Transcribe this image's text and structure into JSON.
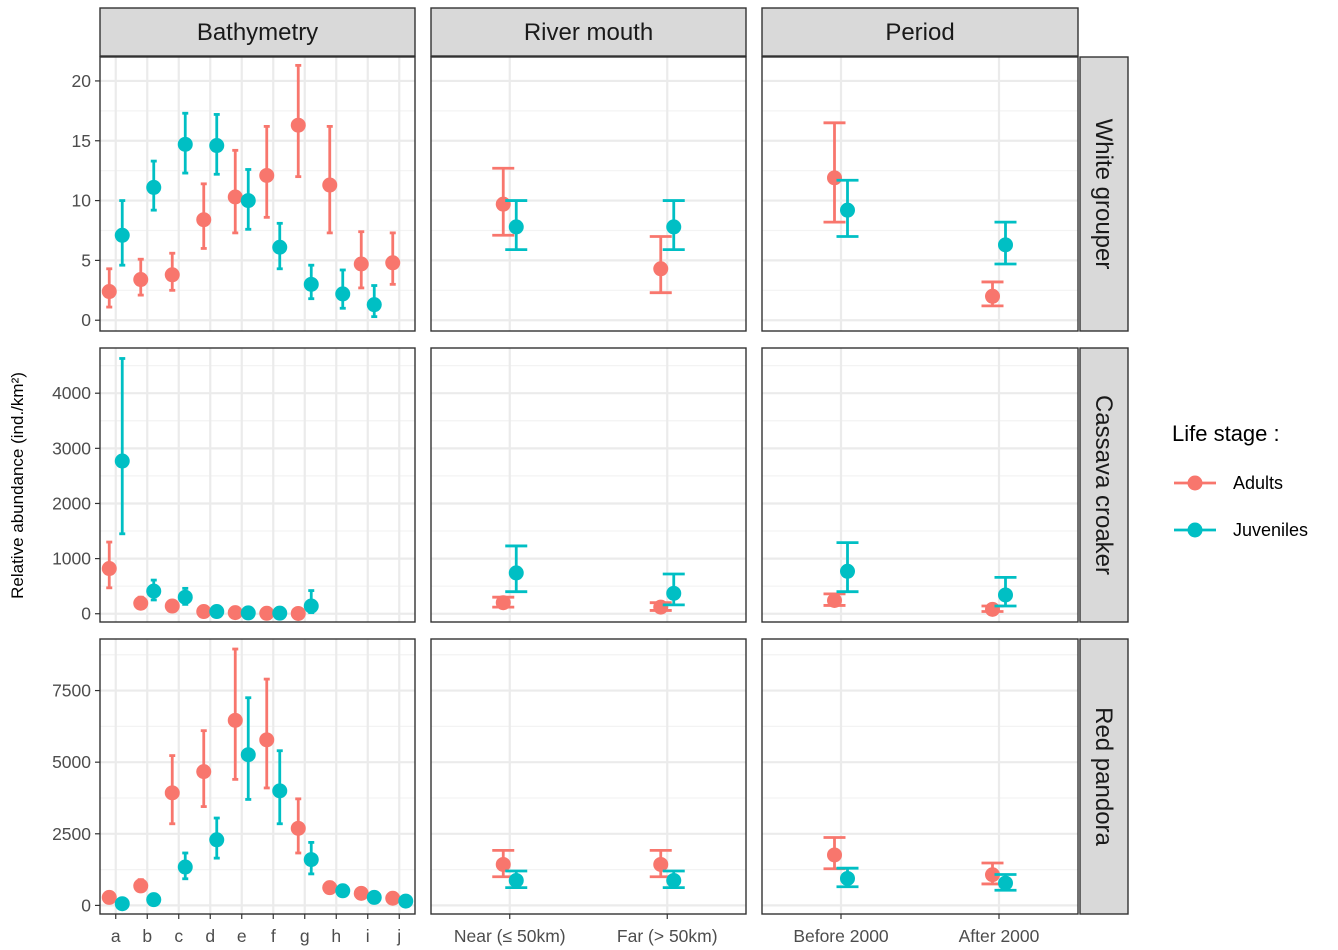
{
  "chart_data": {
    "type": "scatter",
    "subtype": "point-with-errorbars",
    "ylabel": "Relative abundance (ind./km²)",
    "xlabel": "",
    "legend": {
      "title": "Life stage :",
      "placement": "right",
      "entries": [
        {
          "name": "Adults",
          "color": "#F8766D"
        },
        {
          "name": "Juveniles",
          "color": "#00BFC4"
        }
      ]
    },
    "columns": [
      {
        "key": "bath",
        "label": "Bathymetry",
        "categories": [
          "a",
          "b",
          "c",
          "d",
          "e",
          "f",
          "g",
          "h",
          "i",
          "j"
        ]
      },
      {
        "key": "river",
        "label": "River mouth",
        "categories": [
          "Near (≤ 50km)",
          "Far (> 50km)"
        ]
      },
      {
        "key": "period",
        "label": "Period",
        "categories": [
          "Before 2000",
          "After 2000"
        ]
      }
    ],
    "rows": [
      {
        "label": "White grouper",
        "ylim": [
          -0.9,
          22
        ],
        "yticks": [
          0,
          5,
          10,
          15,
          20
        ],
        "panels": {
          "bath": {
            "Adults": [
              [
                2.4,
                1.1,
                4.3
              ],
              [
                3.4,
                2.1,
                5.1
              ],
              [
                3.8,
                2.5,
                5.6
              ],
              [
                8.4,
                6.0,
                11.4
              ],
              [
                10.3,
                7.3,
                14.2
              ],
              [
                12.1,
                8.6,
                16.2
              ],
              [
                16.3,
                12.0,
                21.3
              ],
              [
                11.3,
                7.3,
                16.2
              ],
              [
                4.7,
                2.7,
                7.4
              ],
              [
                4.8,
                3.0,
                7.3
              ]
            ],
            "Juveniles": [
              [
                7.1,
                4.6,
                10.0
              ],
              [
                11.1,
                9.2,
                13.3
              ],
              [
                14.7,
                12.3,
                17.3
              ],
              [
                14.6,
                12.2,
                17.2
              ],
              [
                10.0,
                7.6,
                12.6
              ],
              [
                6.1,
                4.3,
                8.1
              ],
              [
                3.0,
                1.8,
                4.6
              ],
              [
                2.2,
                1.0,
                4.2
              ],
              [
                1.3,
                0.3,
                2.9
              ],
              null
            ]
          },
          "river": {
            "Adults": [
              [
                9.7,
                7.1,
                12.7
              ],
              [
                4.3,
                2.3,
                7.0
              ]
            ],
            "Juveniles": [
              [
                7.8,
                5.9,
                10.0
              ],
              [
                7.8,
                5.9,
                10.0
              ]
            ]
          },
          "period": {
            "Adults": [
              [
                11.9,
                8.2,
                16.5
              ],
              [
                2.0,
                1.2,
                3.2
              ]
            ],
            "Juveniles": [
              [
                9.2,
                7.0,
                11.7
              ],
              [
                6.3,
                4.7,
                8.2
              ]
            ]
          }
        }
      },
      {
        "label": "Cassava croaker",
        "ylim": [
          -150,
          4820
        ],
        "yticks": [
          0,
          1000,
          2000,
          3000,
          4000
        ],
        "panels": {
          "bath": {
            "Adults": [
              [
                820,
                470,
                1300
              ],
              [
                190,
                110,
                300
              ],
              [
                140,
                80,
                240
              ],
              [
                40,
                10,
                80
              ],
              [
                20,
                5,
                45
              ],
              [
                8,
                2,
                25
              ],
              [
                5,
                1,
                20
              ],
              null,
              null,
              null
            ],
            "Juveniles": [
              [
                2770,
                1450,
                4630
              ],
              [
                410,
                250,
                610
              ],
              [
                300,
                170,
                460
              ],
              [
                40,
                10,
                90
              ],
              [
                15,
                3,
                40
              ],
              [
                10,
                2,
                30
              ],
              [
                140,
                20,
                420
              ],
              null,
              null,
              null
            ]
          },
          "river": {
            "Adults": [
              [
                200,
                120,
                300
              ],
              [
                120,
                60,
                200
              ]
            ],
            "Juveniles": [
              [
                740,
                400,
                1230
              ],
              [
                370,
                160,
                720
              ]
            ]
          },
          "period": {
            "Adults": [
              [
                240,
                150,
                360
              ],
              [
                80,
                40,
                140
              ]
            ],
            "Juveniles": [
              [
                770,
                400,
                1290
              ],
              [
                340,
                140,
                660
              ]
            ]
          }
        }
      },
      {
        "label": "Red pandora",
        "ylim": [
          -300,
          9300
        ],
        "yticks": [
          0,
          2500,
          5000,
          7500
        ],
        "panels": {
          "bath": {
            "Adults": [
              [
                280,
                180,
                420
              ],
              [
                680,
                500,
                900
              ],
              [
                3930,
                2850,
                5230
              ],
              [
                4670,
                3450,
                6100
              ],
              [
                6460,
                4400,
                8950
              ],
              [
                5780,
                4100,
                7900
              ],
              [
                2690,
                1830,
                3720
              ],
              [
                620,
                450,
                820
              ],
              [
                420,
                280,
                600
              ],
              [
                250,
                160,
                380
              ]
            ],
            "Juveniles": [
              [
                60,
                20,
                150
              ],
              [
                200,
                100,
                330
              ],
              [
                1340,
                930,
                1830
              ],
              [
                2290,
                1650,
                3050
              ],
              [
                5260,
                3700,
                7250
              ],
              [
                4000,
                2850,
                5400
              ],
              [
                1600,
                1100,
                2200
              ],
              [
                510,
                350,
                700
              ],
              [
                280,
                180,
                420
              ],
              [
                150,
                70,
                260
              ]
            ]
          },
          "river": {
            "Adults": [
              [
                1430,
                1000,
                1920
              ],
              [
                1430,
                1000,
                1920
              ]
            ],
            "Juveniles": [
              [
                870,
                620,
                1200
              ],
              [
                870,
                620,
                1200
              ]
            ]
          },
          "period": {
            "Adults": [
              [
                1760,
                1280,
                2370
              ],
              [
                1070,
                750,
                1480
              ]
            ],
            "Juveniles": [
              [
                940,
                650,
                1300
              ],
              [
                780,
                530,
                1080
              ]
            ]
          }
        }
      }
    ]
  }
}
